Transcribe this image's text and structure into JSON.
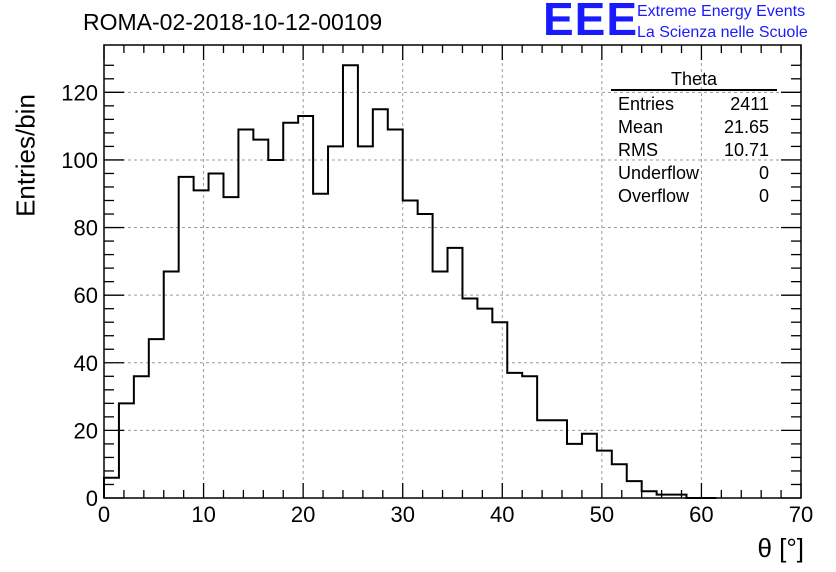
{
  "chart_data": {
    "type": "bar",
    "title": "ROMA-02-2018-10-12-00109",
    "xlabel": "θ [°]",
    "ylabel": "Entries/bin",
    "xlim": [
      0,
      70
    ],
    "ylim": [
      0,
      134
    ],
    "grid": true,
    "bin_width": 1.5,
    "x_ticks": [
      0,
      10,
      20,
      30,
      40,
      50,
      60,
      70
    ],
    "y_ticks": [
      0,
      20,
      40,
      60,
      80,
      100,
      120
    ],
    "values": [
      6,
      28,
      36,
      47,
      67,
      95,
      91,
      96,
      89,
      109,
      106,
      100,
      111,
      113,
      90,
      104,
      128,
      104,
      115,
      109,
      88,
      84,
      67,
      74,
      59,
      56,
      52,
      37,
      36,
      23,
      23,
      16,
      19,
      14,
      10,
      5,
      2,
      1,
      1,
      0,
      0
    ],
    "stats": {
      "name": "Theta",
      "rows": [
        {
          "label": "Entries",
          "value": "2411"
        },
        {
          "label": "Mean",
          "value": "21.65"
        },
        {
          "label": "RMS",
          "value": "10.71"
        },
        {
          "label": "Underflow",
          "value": "0"
        },
        {
          "label": "Overflow",
          "value": "0"
        }
      ]
    }
  },
  "logo": {
    "mark": "EEE",
    "line1": "Extreme Energy Events",
    "line2": "La Scienza nelle Scuole",
    "color": "#1a1aff"
  }
}
